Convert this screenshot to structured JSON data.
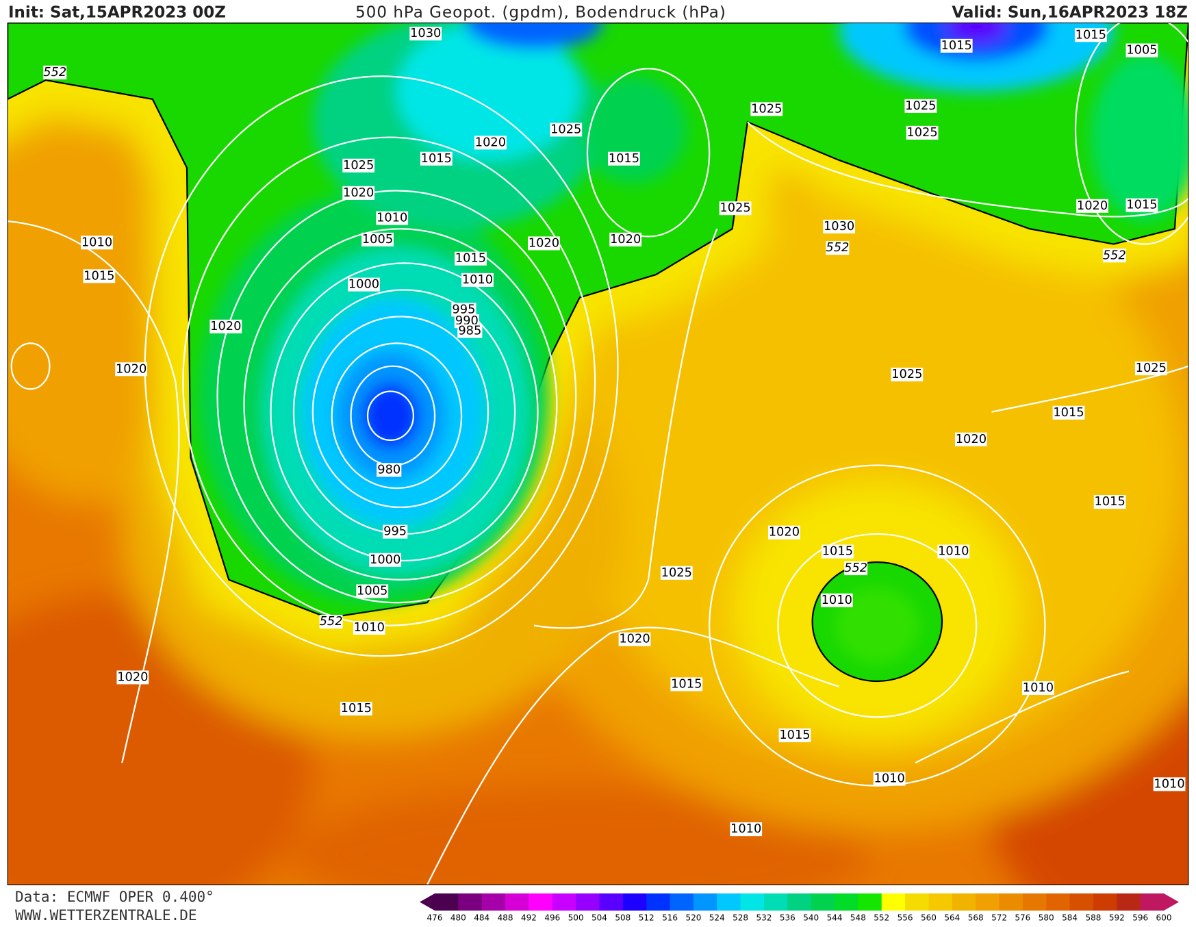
{
  "header": {
    "init": "Init: Sat,15APR2023 00Z",
    "title": "500 hPa Geopot. (gpdm), Bodendruck (hPa)",
    "valid": "Valid: Sun,16APR2023 18Z"
  },
  "footer": {
    "source": "Data: ECMWF OPER 0.400°",
    "site": "WWW.WETTERZENTRALE.DE"
  },
  "pressure_labels": [
    1030,
    1015,
    1015,
    1005,
    1025,
    1025,
    1025,
    1020,
    1015,
    1015,
    1025,
    1025,
    1020,
    1025,
    1030,
    1020,
    1015,
    1010,
    1005,
    1010,
    1020,
    1020,
    1015,
    1010,
    1015,
    1000,
    995,
    990,
    985,
    1020,
    1020,
    1025,
    1025,
    1015,
    1020,
    980,
    1015,
    995,
    1020,
    1015,
    1010,
    1000,
    1025,
    1010,
    1005,
    1010,
    1020,
    1020,
    1015,
    1010,
    1015,
    1015,
    1010,
    1010,
    1010
  ],
  "geopotential_labels": [
    552,
    552,
    552,
    552,
    552
  ],
  "colorbar": {
    "ticks": [
      476,
      480,
      484,
      488,
      492,
      496,
      500,
      504,
      508,
      512,
      516,
      520,
      524,
      528,
      532,
      536,
      540,
      544,
      548,
      552,
      556,
      560,
      564,
      568,
      572,
      576,
      580,
      584,
      588,
      592,
      596,
      600
    ],
    "colors": [
      "#4b0050",
      "#7a007f",
      "#a600a8",
      "#d600d6",
      "#ff00ff",
      "#c800ff",
      "#9600ff",
      "#5a00ff",
      "#1e00ff",
      "#0032ff",
      "#0064ff",
      "#0096ff",
      "#00c8ff",
      "#00e6e6",
      "#00dcb4",
      "#00d282",
      "#00d250",
      "#00dc28",
      "#14e600",
      "#ffff00",
      "#f5dc00",
      "#f5c800",
      "#f0b400",
      "#f0a000",
      "#eb8c00",
      "#e67800",
      "#e16400",
      "#d75000",
      "#cd3c00",
      "#b92814",
      "#c01860"
    ]
  }
}
